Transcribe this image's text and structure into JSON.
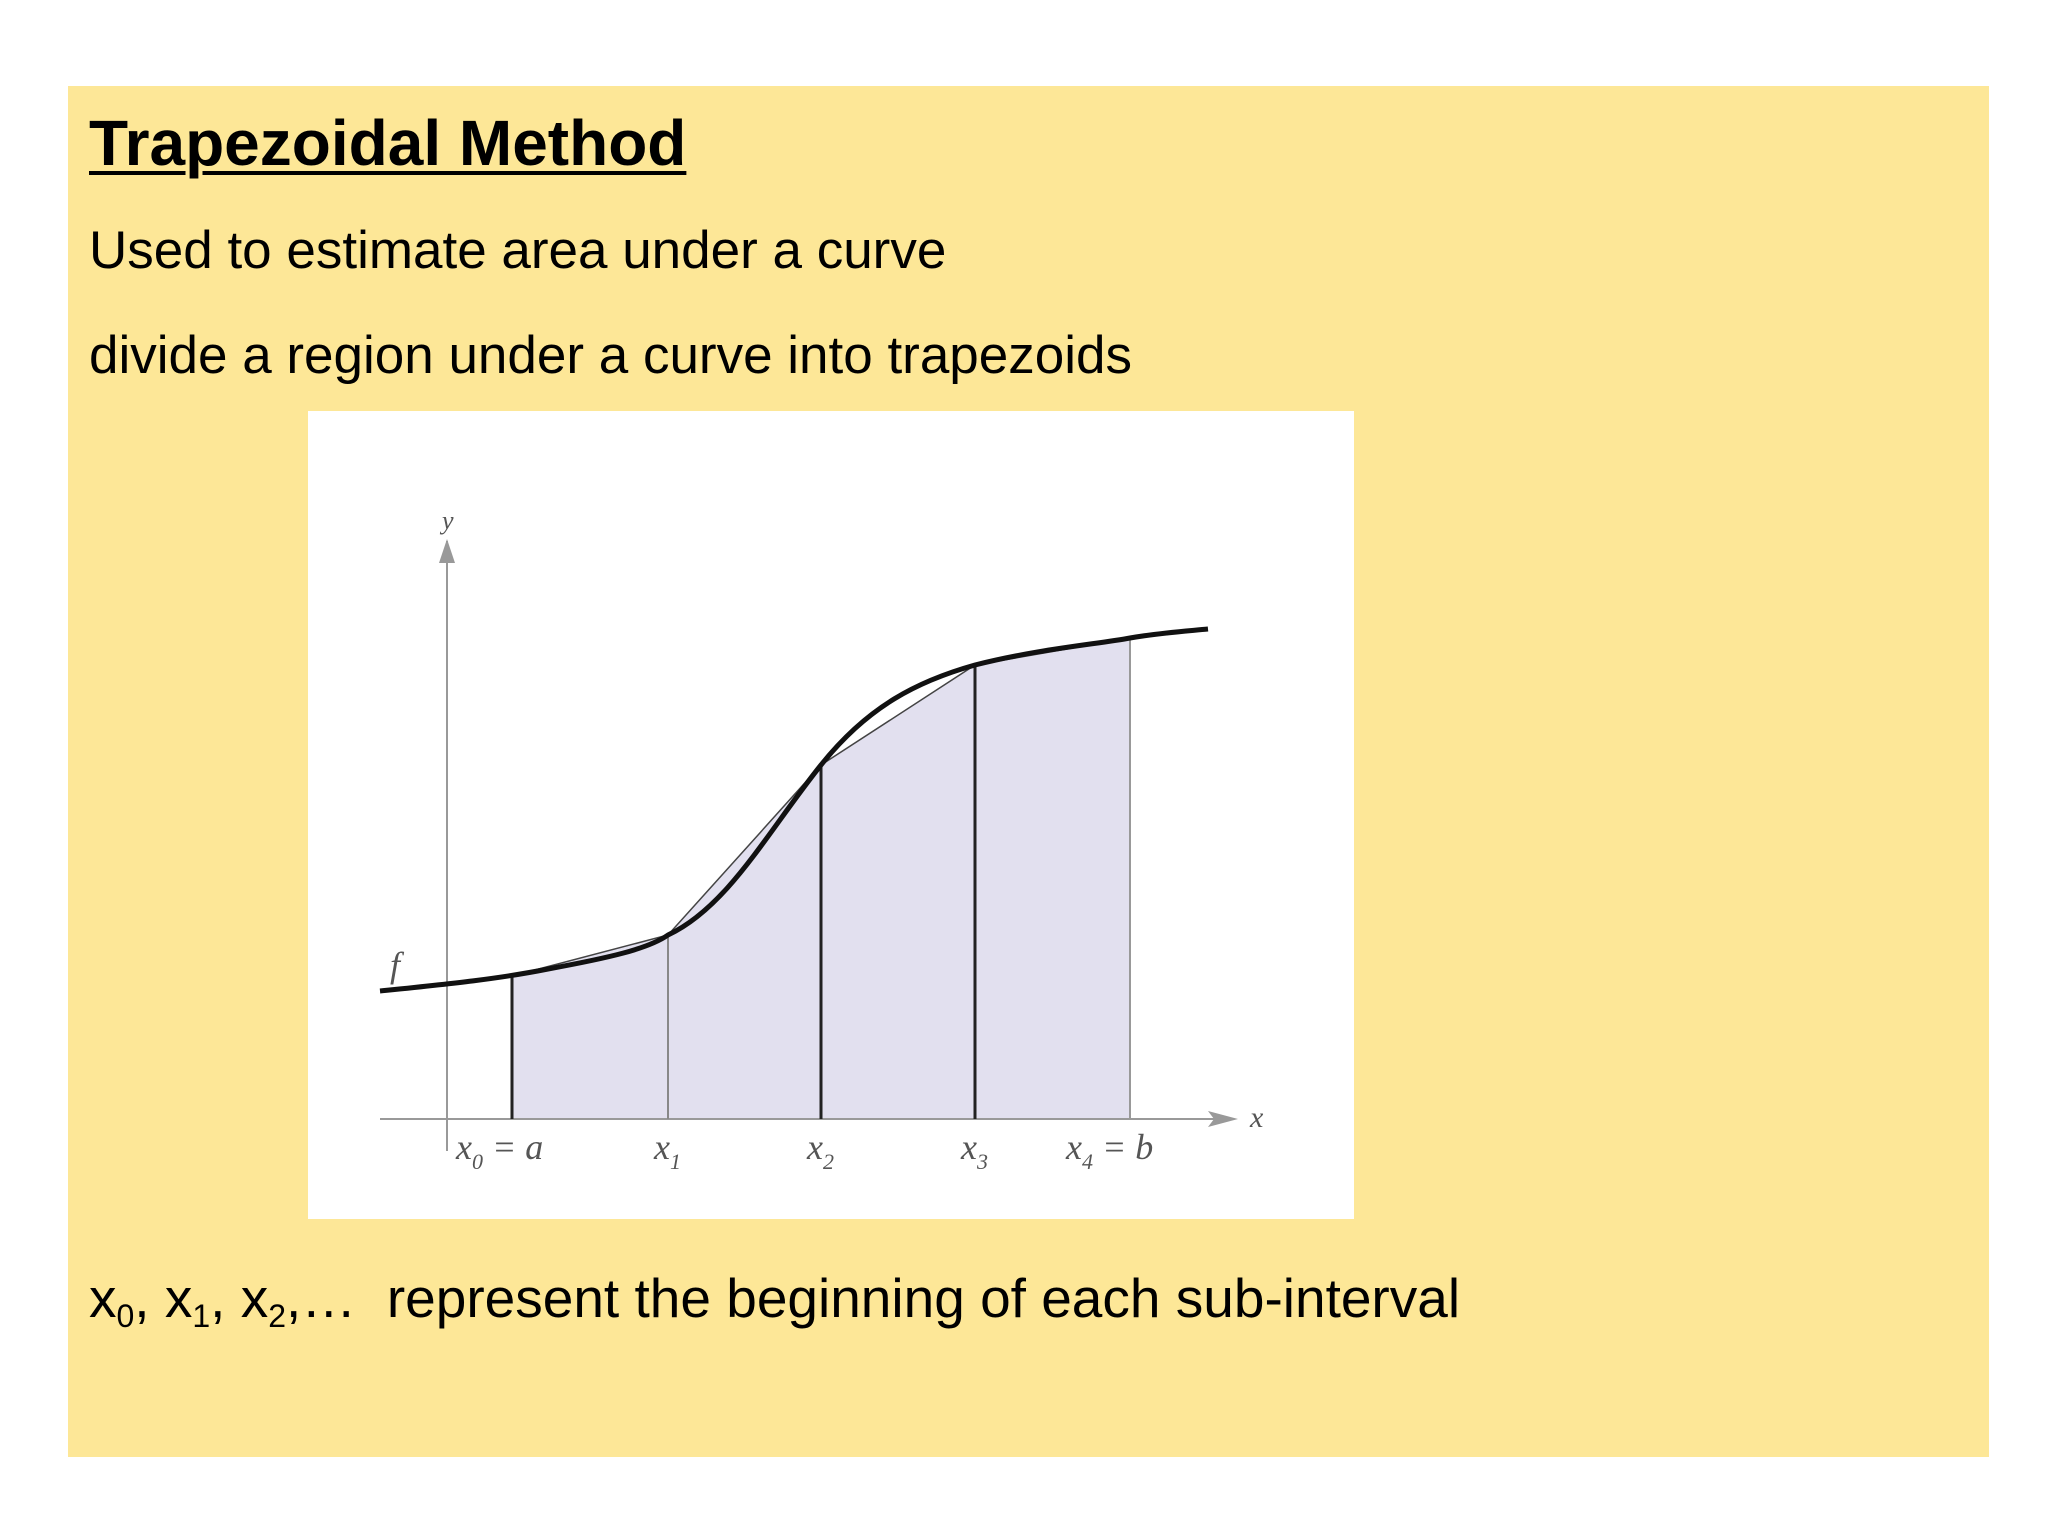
{
  "slide": {
    "title": "Trapezoidal Method",
    "line1": "Used to estimate area under a curve",
    "line2": "divide a region under a curve into trapezoids",
    "caption": {
      "x0": "x",
      "s0": "0",
      "sep1": ", ",
      "x1": "x",
      "s1": "1",
      "sep2": ", ",
      "x2": "x",
      "s2": "2",
      "ellipsis": ",…",
      "rest": "  represent the beginning of each sub-interval"
    },
    "background_color": "#fde797"
  },
  "figure": {
    "axis_y_label": "y",
    "axis_x_label": "x",
    "curve_label": "f",
    "tick_labels": [
      {
        "base": "x",
        "sub": "0",
        "suffix": " = a"
      },
      {
        "base": "x",
        "sub": "1",
        "suffix": ""
      },
      {
        "base": "x",
        "sub": "2",
        "suffix": ""
      },
      {
        "base": "x",
        "sub": "3",
        "suffix": ""
      },
      {
        "base": "x",
        "sub": "4",
        "suffix": " = b"
      }
    ],
    "fill_color": "#e2e0ef",
    "curve_color": "#111111"
  }
}
